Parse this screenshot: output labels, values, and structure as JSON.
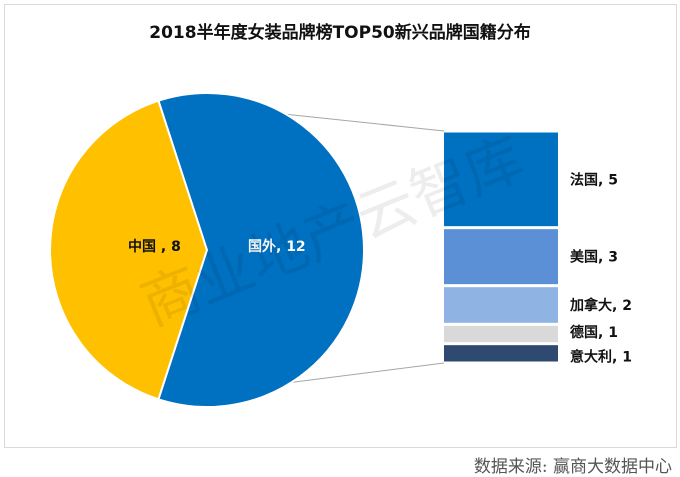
{
  "chart_data": {
    "type": "pie-of-bar",
    "title": "2018半年度女装品牌榜TOP50新兴品牌国籍分布",
    "pie": [
      {
        "label": "中国",
        "value": 8,
        "color": "#ffc000",
        "text": "中国 , 8"
      },
      {
        "label": "国外",
        "value": 12,
        "color": "#0070c0",
        "text": "国外, 12"
      }
    ],
    "bar": [
      {
        "label": "法国",
        "value": 5,
        "color": "#0070c0",
        "text": "法国, 5"
      },
      {
        "label": "美国",
        "value": 3,
        "color": "#5b8fd6",
        "text": "美国, 3"
      },
      {
        "label": "加拿大",
        "value": 2,
        "color": "#8fb4e3",
        "text": "加拿大, 2"
      },
      {
        "label": "德国",
        "value": 1,
        "color": "#d9d9d9",
        "text": "德国, 1"
      },
      {
        "label": "意大利",
        "value": 1,
        "color": "#2e4a70",
        "text": "意大利, 1"
      }
    ]
  },
  "watermark": "商业地产云智库",
  "source": "数据来源:  赢商大数据中心"
}
